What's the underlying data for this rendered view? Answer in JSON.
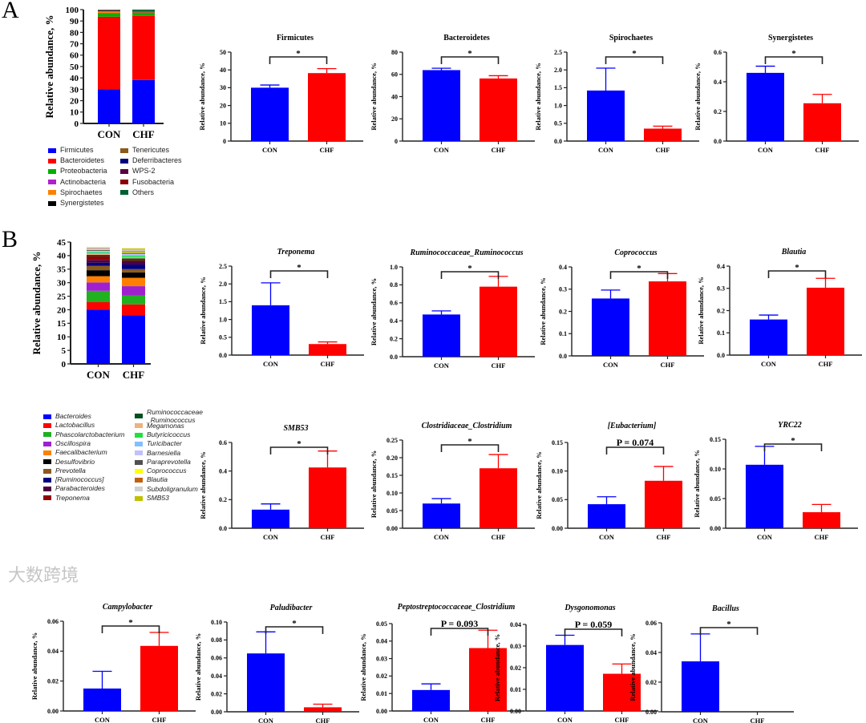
{
  "panels": {
    "a": "A",
    "b": "B"
  },
  "watermark": "大数跨境",
  "chart_data": [
    {
      "type": "bar",
      "stacked": true,
      "id": "A-stack",
      "ylabel": "Relative abundance, %",
      "categories": [
        "CON",
        "CHF"
      ],
      "ylim": [
        0,
        100
      ],
      "yticks": [
        "0",
        "10",
        "20",
        "30",
        "40",
        "50",
        "60",
        "70",
        "80",
        "90",
        "100"
      ],
      "series": [
        {
          "name": "Firmicutes",
          "color": "#0000ff",
          "values": [
            30.0,
            38.2
          ]
        },
        {
          "name": "Bacteroidetes",
          "color": "#ff0000",
          "values": [
            63.8,
            56.3
          ]
        },
        {
          "name": "Proteobacteria",
          "color": "#00b000",
          "values": [
            3.0,
            2.4
          ]
        },
        {
          "name": "Actinobacteria",
          "color": "#b020d0",
          "values": [
            0.3,
            0.3
          ]
        },
        {
          "name": "Spirochaetes",
          "color": "#ff8000",
          "values": [
            1.4,
            0.35
          ]
        },
        {
          "name": "Synergistetes",
          "color": "#000000",
          "values": [
            0.46,
            0.26
          ]
        },
        {
          "name": "Tenericutes",
          "color": "#8b5a1a",
          "values": [
            0.5,
            0.5
          ]
        },
        {
          "name": "Deferribacteres",
          "color": "#000080",
          "values": [
            0.2,
            0.2
          ]
        },
        {
          "name": "WPS-2",
          "color": "#5a0040",
          "values": [
            0.1,
            0.1
          ]
        },
        {
          "name": "Fusobacteria",
          "color": "#8b0000",
          "values": [
            0.1,
            0.1
          ]
        },
        {
          "name": "Others",
          "color": "#006030",
          "values": [
            0.14,
            1.3
          ]
        }
      ]
    },
    {
      "type": "bar",
      "stacked": true,
      "id": "B-stack",
      "ylabel": "Relative abundance, %",
      "categories": [
        "CON",
        "CHF"
      ],
      "ylim": [
        0,
        45
      ],
      "yticks": [
        "0",
        "5",
        "10",
        "15",
        "20",
        "25",
        "30",
        "35",
        "40",
        "45"
      ],
      "series": [
        {
          "name": "Bacteroides",
          "color": "#0000ff",
          "values": [
            20.0,
            18.0
          ]
        },
        {
          "name": "Lactobacillus",
          "color": "#ff0000",
          "values": [
            2.8,
            4.0
          ]
        },
        {
          "name": "Phascolarctobacterium",
          "color": "#20b020",
          "values": [
            4.2,
            3.3
          ]
        },
        {
          "name": "Oscillospira",
          "color": "#a020d0",
          "values": [
            3.1,
            3.4
          ]
        },
        {
          "name": "Faecalibacterium",
          "color": "#ff8000",
          "values": [
            2.3,
            3.1
          ]
        },
        {
          "name": "Desulfovibrio",
          "color": "#000000",
          "values": [
            2.2,
            2.0
          ]
        },
        {
          "name": "Prevotella",
          "color": "#8b5a1a",
          "values": [
            1.6,
            1.2
          ]
        },
        {
          "name": "[Ruminococcus]",
          "color": "#000080",
          "values": [
            1.2,
            1.7
          ]
        },
        {
          "name": "Parabacteroides",
          "color": "#500040",
          "values": [
            1.0,
            1.2
          ]
        },
        {
          "name": "Treponema",
          "color": "#900000",
          "values": [
            1.4,
            0.31
          ]
        },
        {
          "name": "Ruminococcaceae _Ruminococcus",
          "color": "#005020",
          "values": [
            0.47,
            0.78
          ]
        },
        {
          "name": "Megamonas",
          "color": "#f0b080",
          "values": [
            0.5,
            0.4
          ]
        },
        {
          "name": "Butyricicoccus",
          "color": "#20e040",
          "values": [
            0.4,
            0.5
          ]
        },
        {
          "name": "Turicibacter",
          "color": "#80c0ff",
          "values": [
            0.3,
            0.4
          ]
        },
        {
          "name": "Barnesiella",
          "color": "#c0c0ff",
          "values": [
            0.3,
            0.4
          ]
        },
        {
          "name": "Paraprevotella",
          "color": "#505050",
          "values": [
            0.3,
            0.4
          ]
        },
        {
          "name": "Coprococcus",
          "color": "#ffff00",
          "values": [
            0.26,
            0.33
          ]
        },
        {
          "name": "Blautia",
          "color": "#c06010",
          "values": [
            0.16,
            0.3
          ]
        },
        {
          "name": "Subdoligranulum",
          "color": "#d0d0d0",
          "values": [
            0.5,
            0.5
          ]
        },
        {
          "name": "SMB53",
          "color": "#c0c000",
          "values": [
            0.13,
            0.43
          ]
        }
      ]
    },
    {
      "type": "bar",
      "id": "firmicutes",
      "title": "Firmicutes",
      "italic": false,
      "ylabel": "Relative abundance, %",
      "categories": [
        "CON",
        "CHF"
      ],
      "values": [
        30.0,
        38.2
      ],
      "errors": [
        1.5,
        2.5
      ],
      "ylim": [
        0,
        50
      ],
      "yticks": [
        "0",
        "10",
        "20",
        "30",
        "40",
        "50"
      ],
      "significance": "*",
      "colors": [
        "#0000ff",
        "#ff0000"
      ]
    },
    {
      "type": "bar",
      "id": "bacteroidetes",
      "title": "Bacteroidetes",
      "italic": false,
      "ylabel": "Relative abundance, %",
      "categories": [
        "CON",
        "CHF"
      ],
      "values": [
        63.8,
        56.3
      ],
      "errors": [
        1.7,
        2.5
      ],
      "ylim": [
        0,
        80
      ],
      "yticks": [
        "0",
        "20",
        "40",
        "60",
        "80"
      ],
      "significance": "*",
      "colors": [
        "#0000ff",
        "#ff0000"
      ]
    },
    {
      "type": "bar",
      "id": "spirochaetes",
      "title": "Spirochaetes",
      "italic": false,
      "ylabel": "Relative abundance, %",
      "categories": [
        "CON",
        "CHF"
      ],
      "values": [
        1.42,
        0.35
      ],
      "errors": [
        0.63,
        0.07
      ],
      "ylim": [
        0,
        2.5
      ],
      "yticks": [
        "0.0",
        "0.5",
        "1.0",
        "1.5",
        "2.0",
        "2.5"
      ],
      "significance": "*",
      "colors": [
        "#0000ff",
        "#ff0000"
      ]
    },
    {
      "type": "bar",
      "id": "synergistetes",
      "title": "Synergistetes",
      "italic": false,
      "ylabel": "Relative abundance, %",
      "categories": [
        "CON",
        "CHF"
      ],
      "values": [
        0.46,
        0.255
      ],
      "errors": [
        0.045,
        0.06
      ],
      "ylim": [
        0,
        0.6
      ],
      "yticks": [
        "0.0",
        "0.2",
        "0.4",
        "0.6"
      ],
      "significance": "*",
      "colors": [
        "#0000ff",
        "#ff0000"
      ]
    },
    {
      "type": "bar",
      "id": "treponema",
      "title": "Treponema",
      "italic": true,
      "ylabel": "Relative abundance, %",
      "categories": [
        "CON",
        "CHF"
      ],
      "values": [
        1.4,
        0.31
      ],
      "errors": [
        0.63,
        0.06
      ],
      "ylim": [
        0,
        2.5
      ],
      "yticks": [
        "0.0",
        "0.5",
        "1.0",
        "1.5",
        "2.0",
        "2.5"
      ],
      "significance": "*",
      "colors": [
        "#0000ff",
        "#ff0000"
      ]
    },
    {
      "type": "bar",
      "id": "ruminococcaceae-ruminococcus",
      "title": "Ruminococcaceae_Ruminococcus",
      "italic": true,
      "ylabel": "Relative abundance, %",
      "categories": [
        "CON",
        "CHF"
      ],
      "values": [
        0.47,
        0.78
      ],
      "errors": [
        0.04,
        0.115
      ],
      "ylim": [
        0,
        1.0
      ],
      "yticks": [
        "0.0",
        "0.2",
        "0.4",
        "0.6",
        "0.8",
        "1.0"
      ],
      "significance": "*",
      "colors": [
        "#0000ff",
        "#ff0000"
      ]
    },
    {
      "type": "bar",
      "id": "coprococcus",
      "title": "Coprococcus",
      "italic": true,
      "ylabel": "Relative abundance, %",
      "categories": [
        "CON",
        "CHF"
      ],
      "values": [
        0.258,
        0.335
      ],
      "errors": [
        0.038,
        0.035
      ],
      "ylim": [
        0,
        0.4
      ],
      "yticks": [
        "0.0",
        "0.1",
        "0.2",
        "0.3",
        "0.4"
      ],
      "significance": "*",
      "colors": [
        "#0000ff",
        "#ff0000"
      ]
    },
    {
      "type": "bar",
      "id": "blautia",
      "title": "Blautia",
      "italic": true,
      "ylabel": "Relative abundance, %",
      "categories": [
        "CON",
        "CHF"
      ],
      "values": [
        0.16,
        0.303
      ],
      "errors": [
        0.02,
        0.042
      ],
      "ylim": [
        0,
        0.4
      ],
      "yticks": [
        "0.0",
        "0.1",
        "0.2",
        "0.3",
        "0.4"
      ],
      "significance": "*",
      "colors": [
        "#0000ff",
        "#ff0000"
      ]
    },
    {
      "type": "bar",
      "id": "smb53",
      "title": "SMB53",
      "italic": true,
      "ylabel": "Relative abundance, %",
      "categories": [
        "CON",
        "CHF"
      ],
      "values": [
        0.13,
        0.425
      ],
      "errors": [
        0.04,
        0.115
      ],
      "ylim": [
        0,
        0.6
      ],
      "yticks": [
        "0.0",
        "0.2",
        "0.4",
        "0.6"
      ],
      "significance": "*",
      "colors": [
        "#0000ff",
        "#ff0000"
      ]
    },
    {
      "type": "bar",
      "id": "clostridiaceae-clostridium",
      "title": "Clostridiaceae_Clostridium",
      "italic": true,
      "ylabel": "Relative abundance, %",
      "categories": [
        "CON",
        "CHF"
      ],
      "values": [
        0.07,
        0.17
      ],
      "errors": [
        0.014,
        0.039
      ],
      "ylim": [
        0,
        0.25
      ],
      "yticks": [
        "0.00",
        "0.05",
        "0.10",
        "0.15",
        "0.20",
        "0.25"
      ],
      "significance": "*",
      "colors": [
        "#0000ff",
        "#ff0000"
      ]
    },
    {
      "type": "bar",
      "id": "eubacterium",
      "title": "[Eubacterium]",
      "italic": true,
      "ylabel": "Relative abundance, %",
      "categories": [
        "CON",
        "CHF"
      ],
      "values": [
        0.042,
        0.083
      ],
      "errors": [
        0.013,
        0.025
      ],
      "ylim": [
        0,
        0.15
      ],
      "yticks": [
        "0.00",
        "0.05",
        "0.10",
        "0.15"
      ],
      "significance": "P = 0.074",
      "colors": [
        "#0000ff",
        "#ff0000"
      ]
    },
    {
      "type": "bar",
      "id": "yrc22",
      "title": "YRC22",
      "italic": true,
      "ylabel": "Relative abundance, %",
      "categories": [
        "CON",
        "CHF"
      ],
      "values": [
        0.107,
        0.027
      ],
      "errors": [
        0.031,
        0.013
      ],
      "ylim": [
        0,
        0.15
      ],
      "yticks": [
        "0.00",
        "0.05",
        "0.10",
        "0.15"
      ],
      "significance": "*",
      "colors": [
        "#0000ff",
        "#ff0000"
      ]
    },
    {
      "type": "bar",
      "id": "campylobacter",
      "title": "Campylobacter",
      "italic": true,
      "ylabel": "Relative abundance, %",
      "categories": [
        "CON",
        "CHF"
      ],
      "values": [
        0.015,
        0.0435
      ],
      "errors": [
        0.0115,
        0.009
      ],
      "ylim": [
        0,
        0.06
      ],
      "yticks": [
        "0.00",
        "0.02",
        "0.04",
        "0.06"
      ],
      "significance": "*",
      "colors": [
        "#0000ff",
        "#ff0000"
      ]
    },
    {
      "type": "bar",
      "id": "paludibacter",
      "title": "Paludibacter",
      "italic": true,
      "ylabel": "Relative abundance, %",
      "categories": [
        "CON",
        "CHF"
      ],
      "values": [
        0.065,
        0.005
      ],
      "errors": [
        0.024,
        0.0035
      ],
      "ylim": [
        0,
        0.1
      ],
      "yticks": [
        "0.00",
        "0.02",
        "0.04",
        "0.06",
        "0.08",
        "0.10"
      ],
      "significance": "*",
      "colors": [
        "#0000ff",
        "#ff0000"
      ]
    },
    {
      "type": "bar",
      "id": "peptostreptococcaceae-clostridium",
      "title": "Peptostreptococcaceae_Clostridium",
      "italic": true,
      "ylabel": "Relative abundance, %",
      "categories": [
        "CON",
        "CHF"
      ],
      "values": [
        0.012,
        0.036
      ],
      "errors": [
        0.0035,
        0.0102
      ],
      "ylim": [
        0,
        0.05
      ],
      "yticks": [
        "0.00",
        "0.01",
        "0.02",
        "0.03",
        "0.04",
        "0.05"
      ],
      "significance": "P = 0.093",
      "colors": [
        "#0000ff",
        "#ff0000"
      ]
    },
    {
      "type": "bar",
      "id": "dysgonomonas",
      "title": "Dysgonomonas",
      "italic": true,
      "ylabel": "Relative abundance, %",
      "categories": [
        "CON",
        "CHF"
      ],
      "values": [
        0.0305,
        0.0172
      ],
      "errors": [
        0.0045,
        0.0045
      ],
      "ylim": [
        0,
        0.04
      ],
      "yticks": [
        "0.00",
        "0.01",
        "0.02",
        "0.03",
        "0.04"
      ],
      "significance": "P = 0.059",
      "colors": [
        "#0000ff",
        "#ff0000"
      ]
    },
    {
      "type": "bar",
      "id": "bacillus",
      "title": "Bacillus",
      "italic": true,
      "ylabel": "Relative abundance, %",
      "categories": [
        "CON",
        "CHF"
      ],
      "values": [
        0.034,
        0.0
      ],
      "errors": [
        0.0185,
        0.0
      ],
      "ylim": [
        0,
        0.06
      ],
      "yticks": [
        "0.00",
        "0.02",
        "0.04",
        "0.06"
      ],
      "significance": "*",
      "colors": [
        "#0000ff",
        "#ff0000"
      ]
    }
  ]
}
